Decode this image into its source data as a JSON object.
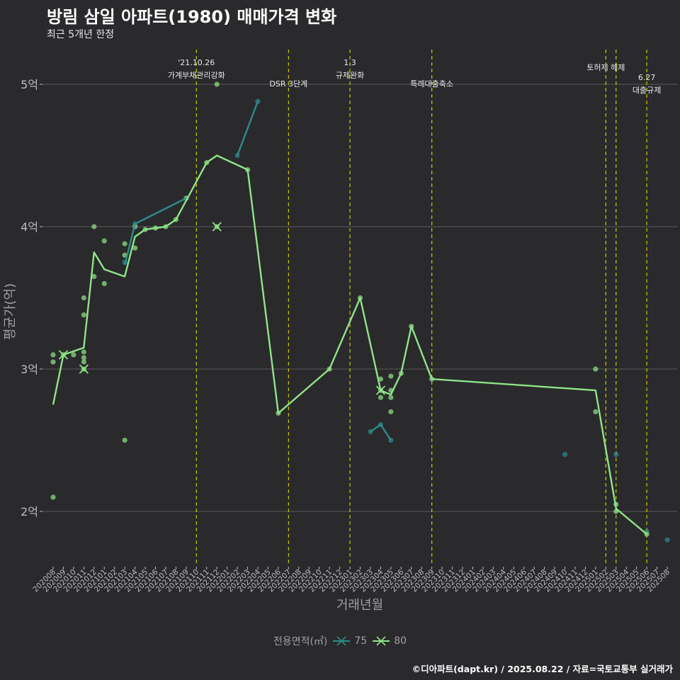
{
  "colors": {
    "background": "#2a292b",
    "grid": "#5a5a5a",
    "series_75": "#2e8b8b",
    "series_80": "#8fe388",
    "event_line": "#c8c800",
    "text": "#ffffff",
    "axis_text": "#bdbdbd"
  },
  "legend": {
    "title": "전용면적(㎡)",
    "items": [
      {
        "label": "75",
        "marker": "x-cross-icon"
      },
      {
        "label": "80",
        "marker": "x-cross-icon"
      }
    ]
  },
  "caption": "©디아파트(dapt.kr) / 2025.08.22 / 자료=국토교통부 실거래가",
  "chart_data": {
    "type": "line",
    "title": "방림 삼일 아파트(1980) 매매가격 변화",
    "subtitle": "최근 5개년 한정",
    "xlabel": "거래년월",
    "ylabel": "평균가(억)",
    "ylim": [
      1.65,
      5.35
    ],
    "yticks": [
      2,
      3,
      4,
      5
    ],
    "ytick_labels": [
      "2억",
      "3억",
      "4억",
      "5억"
    ],
    "grid": "horizontal",
    "legend_position": "bottom",
    "categories": [
      "202008",
      "202009",
      "202010",
      "202011",
      "202012",
      "202101",
      "202102",
      "202103",
      "202104",
      "202105",
      "202106",
      "202107",
      "202108",
      "202109",
      "202110",
      "202111",
      "202112",
      "202201",
      "202202",
      "202203",
      "202204",
      "202205",
      "202206",
      "202207",
      "202208",
      "202209",
      "202210",
      "202211",
      "202212",
      "202301",
      "202302",
      "202303",
      "202304",
      "202305",
      "202306",
      "202307",
      "202308",
      "202309",
      "202310",
      "202311",
      "202312",
      "202401",
      "202402",
      "202403",
      "202404",
      "202405",
      "202406",
      "202407",
      "202408",
      "202409",
      "202410",
      "202411",
      "202412",
      "202501",
      "202502",
      "202503",
      "202504",
      "202505",
      "202506",
      "202507",
      "202508"
    ],
    "series": [
      {
        "name": "75",
        "line_segments": [
          [
            [
              "202103",
              3.73
            ],
            [
              "202104",
              4.02
            ],
            [
              "202109",
              4.2
            ]
          ],
          [
            [
              "202202",
              4.5
            ],
            [
              "202204",
              4.88
            ]
          ],
          [
            [
              "202303",
              2.56
            ],
            [
              "202304",
              2.61
            ],
            [
              "202305",
              2.5
            ]
          ]
        ],
        "crosses": [],
        "points": [
          [
            "202103",
            3.75
          ],
          [
            "202104",
            4.02
          ],
          [
            "202202",
            4.5
          ],
          [
            "202204",
            4.88
          ],
          [
            "202303",
            2.56
          ],
          [
            "202304",
            2.61
          ],
          [
            "202305",
            2.5
          ],
          [
            "202410",
            2.4
          ],
          [
            "202503",
            2.4
          ],
          [
            "202506",
            1.86
          ],
          [
            "202508",
            1.8
          ]
        ]
      },
      {
        "name": "80",
        "line": [
          [
            "202008",
            2.75
          ],
          [
            "202009",
            3.1
          ],
          [
            "202011",
            3.15
          ],
          [
            "202012",
            3.82
          ],
          [
            "202101",
            3.7
          ],
          [
            "202103",
            3.65
          ],
          [
            "202104",
            3.93
          ],
          [
            "202105",
            3.98
          ],
          [
            "202107",
            4.0
          ],
          [
            "202108",
            4.05
          ],
          [
            "202111",
            4.45
          ],
          [
            "202112",
            4.5
          ],
          [
            "202203",
            4.4
          ],
          [
            "202206",
            2.69
          ],
          [
            "202211",
            3.0
          ],
          [
            "202302",
            3.5
          ],
          [
            "202304",
            2.85
          ],
          [
            "202305",
            2.82
          ],
          [
            "202306",
            2.97
          ],
          [
            "202307",
            3.3
          ],
          [
            "202309",
            2.93
          ],
          [
            "202501",
            2.85
          ],
          [
            "202503",
            2.02
          ],
          [
            "202506",
            1.84
          ]
        ],
        "crosses": [
          [
            "202009",
            3.1
          ],
          [
            "202011",
            3.0
          ],
          [
            "202112",
            4.0
          ],
          [
            "202304",
            2.85
          ]
        ],
        "points": [
          [
            "202008",
            3.1
          ],
          [
            "202008",
            3.05
          ],
          [
            "202008",
            2.1
          ],
          [
            "202009",
            3.1
          ],
          [
            "202010",
            3.1
          ],
          [
            "202011",
            3.5
          ],
          [
            "202011",
            3.38
          ],
          [
            "202011",
            3.12
          ],
          [
            "202011",
            3.08
          ],
          [
            "202011",
            3.05
          ],
          [
            "202011",
            3.0
          ],
          [
            "202012",
            4.0
          ],
          [
            "202012",
            3.65
          ],
          [
            "202101",
            3.9
          ],
          [
            "202101",
            3.6
          ],
          [
            "202103",
            3.88
          ],
          [
            "202103",
            3.8
          ],
          [
            "202103",
            2.5
          ],
          [
            "202104",
            3.85
          ],
          [
            "202104",
            4.0
          ],
          [
            "202105",
            3.98
          ],
          [
            "202106",
            3.99
          ],
          [
            "202107",
            4.0
          ],
          [
            "202108",
            4.05
          ],
          [
            "202109",
            4.2
          ],
          [
            "202111",
            4.45
          ],
          [
            "202112",
            5.0
          ],
          [
            "202112",
            4.0
          ],
          [
            "202203",
            4.4
          ],
          [
            "202206",
            2.69
          ],
          [
            "202211",
            3.0
          ],
          [
            "202302",
            3.5
          ],
          [
            "202304",
            2.93
          ],
          [
            "202304",
            2.85
          ],
          [
            "202304",
            2.8
          ],
          [
            "202305",
            2.95
          ],
          [
            "202305",
            2.85
          ],
          [
            "202305",
            2.8
          ],
          [
            "202305",
            2.7
          ],
          [
            "202306",
            2.97
          ],
          [
            "202307",
            3.3
          ],
          [
            "202309",
            2.93
          ],
          [
            "202501",
            3.0
          ],
          [
            "202501",
            2.7
          ],
          [
            "202503",
            2.05
          ],
          [
            "202503",
            2.0
          ],
          [
            "202506",
            1.84
          ]
        ]
      }
    ],
    "events": [
      {
        "month": "202110",
        "label": "'21.10.26\n가계부채관리강화",
        "level": 0
      },
      {
        "month": "202207",
        "label": "DSR 3단계",
        "level": 2
      },
      {
        "month": "202301",
        "label": "1.3\n규제완화",
        "level": 0
      },
      {
        "month": "202309",
        "label": "특례대출축소",
        "level": 2
      },
      {
        "month": "202502",
        "label": "토허제 해제",
        "level": 1
      },
      {
        "month": "202503",
        "label": "",
        "level": 1
      },
      {
        "month": "202506",
        "label": "6.27\n대출규제",
        "level": 3
      }
    ]
  }
}
